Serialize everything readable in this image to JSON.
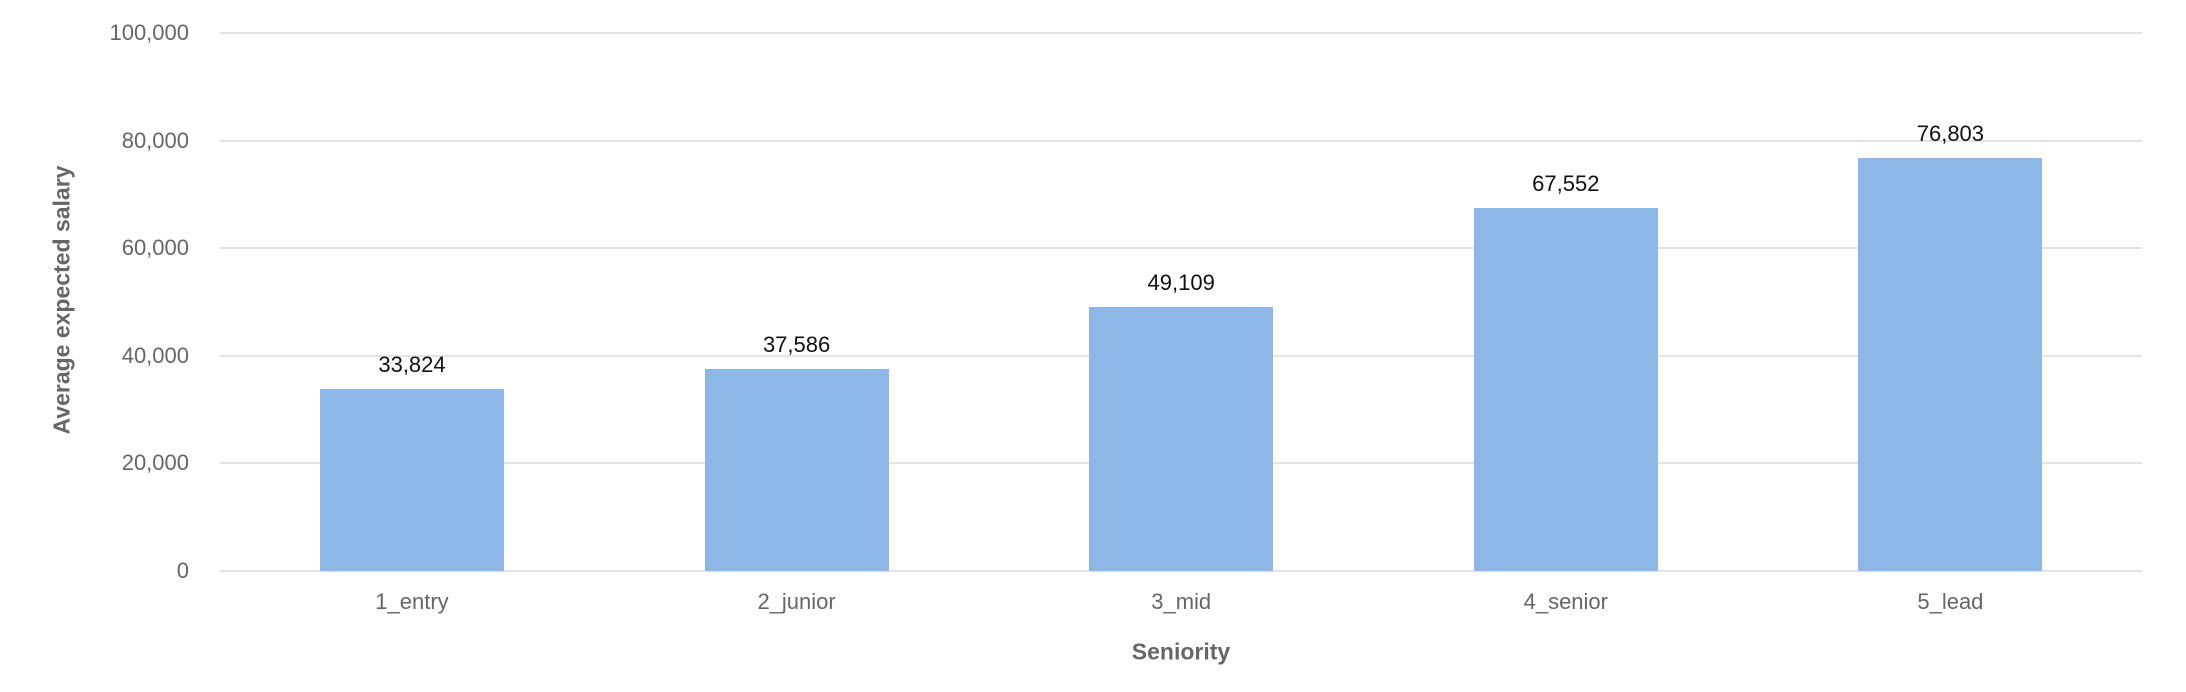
{
  "chart_data": {
    "type": "bar",
    "title": "",
    "xlabel": "Seniority",
    "ylabel": "Average expected salary",
    "categories": [
      "1_entry",
      "2_junior",
      "3_mid",
      "4_senior",
      "5_lead"
    ],
    "values": [
      33824,
      37586,
      49109,
      67552,
      76803
    ],
    "value_labels": [
      "33,824",
      "37,586",
      "49,109",
      "67,552",
      "76,803"
    ],
    "ylim": [
      0,
      100000
    ],
    "yticks": [
      0,
      20000,
      40000,
      60000,
      80000,
      100000
    ],
    "ytick_labels": [
      "0",
      "20,000",
      "40,000",
      "60,000",
      "80,000",
      "100,000"
    ],
    "grid": true,
    "legend": null,
    "colors": {
      "bar": "#8db7e6",
      "grid": "#e3e3e3",
      "axis_text": "#666666",
      "data_label": "#111111"
    }
  }
}
